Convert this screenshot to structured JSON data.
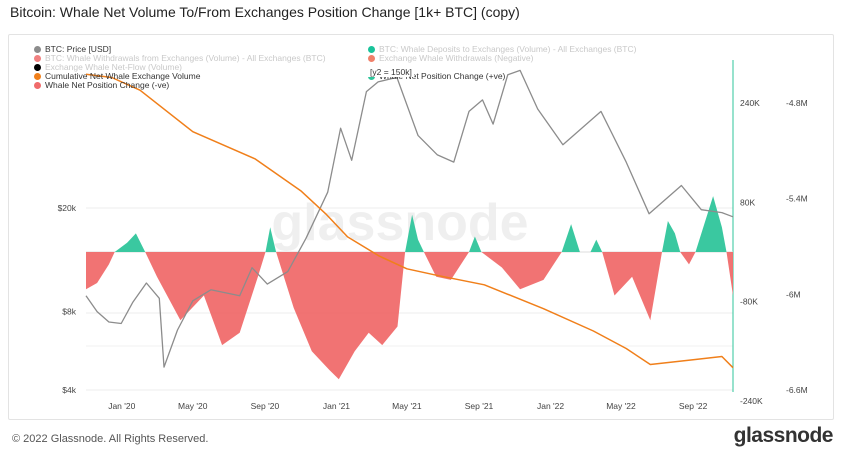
{
  "title": "Bitcoin: Whale Net Volume To/From Exchanges Position Change [1k+ BTC] (copy)",
  "footer": {
    "copyright": "© 2022 Glassnode. All Rights Reserved.",
    "brand": "glassnode"
  },
  "watermark": "glassnode",
  "annotation": "[y2 = 150k]",
  "legend": [
    {
      "label": "BTC: Price [USD]",
      "color": "#8c8c8c",
      "faded": false,
      "col": 0,
      "row": 0
    },
    {
      "label": "BTC: Whale Withdrawals from Exchanges (Volume) - All Exchanges (BTC)",
      "color": "#f08080",
      "faded": true,
      "col": 0,
      "row": 1
    },
    {
      "label": "Exchange Whale Net-Flow (Volume)",
      "color": "#000000",
      "faded": true,
      "col": 0,
      "row": 2
    },
    {
      "label": "Cumulative Net Whale Exchange Volume",
      "color": "#f07f1a",
      "faded": false,
      "col": 0,
      "row": 3
    },
    {
      "label": "Whale Net Position Change (-ve)",
      "color": "#f06b6b",
      "faded": false,
      "col": 0,
      "row": 4
    },
    {
      "label": "BTC: Whale Deposits to Exchanges (Volume) - All Exchanges (BTC)",
      "color": "#19c39a",
      "faded": true,
      "col": 1,
      "row": 0
    },
    {
      "label": "Exchange Whale Withdrawals (Negative)",
      "color": "#f0806a",
      "faded": true,
      "col": 1,
      "row": 1
    },
    {
      "label": "Whale Net Position Change (+ve)",
      "color": "#2fc59b",
      "faded": false,
      "col": 1,
      "row": 3
    }
  ],
  "chart_data": {
    "type": "line",
    "x_ticks": [
      "Jan '20",
      "May '20",
      "Sep '20",
      "Jan '21",
      "May '21",
      "Sep '21",
      "Jan '22",
      "May '22",
      "Sep '22"
    ],
    "y_left": {
      "scale": "log",
      "ticks": [
        "$4k",
        "$8k",
        "$20k"
      ],
      "tick_values": [
        4000,
        8000,
        20000
      ]
    },
    "y_right_inner": {
      "ticks": [
        "240K",
        "80K",
        "-80K",
        "-240K"
      ],
      "tick_values": [
        240000,
        80000,
        -80000,
        -240000
      ]
    },
    "y_right_outer": {
      "ticks": [
        "-4.8M",
        "-5.4M",
        "-6M",
        "-6.6M"
      ],
      "tick_values": [
        -4800000,
        -5400000,
        -6000000,
        -6600000
      ]
    },
    "x_range": [
      "2019-11-01",
      "2022-11-08"
    ],
    "series": [
      {
        "name": "BTC: Price [USD]",
        "axis": "left",
        "color": "#8c8c8c",
        "points": [
          [
            "2019-11-01",
            9200
          ],
          [
            "2019-11-20",
            8000
          ],
          [
            "2019-12-10",
            7300
          ],
          [
            "2019-12-31",
            7200
          ],
          [
            "2020-01-20",
            8700
          ],
          [
            "2020-02-12",
            10300
          ],
          [
            "2020-03-05",
            9000
          ],
          [
            "2020-03-13",
            4900
          ],
          [
            "2020-04-05",
            6800
          ],
          [
            "2020-05-01",
            8800
          ],
          [
            "2020-06-01",
            9700
          ],
          [
            "2020-07-20",
            9200
          ],
          [
            "2020-08-10",
            11800
          ],
          [
            "2020-09-05",
            10200
          ],
          [
            "2020-10-10",
            11400
          ],
          [
            "2020-11-10",
            15300
          ],
          [
            "2020-12-17",
            23000
          ],
          [
            "2021-01-08",
            40500
          ],
          [
            "2021-01-27",
            30500
          ],
          [
            "2021-02-21",
            56000
          ],
          [
            "2021-03-13",
            61000
          ],
          [
            "2021-04-14",
            63500
          ],
          [
            "2021-05-20",
            38000
          ],
          [
            "2021-06-22",
            32000
          ],
          [
            "2021-07-20",
            30000
          ],
          [
            "2021-08-15",
            47000
          ],
          [
            "2021-09-07",
            52000
          ],
          [
            "2021-09-25",
            42000
          ],
          [
            "2021-10-20",
            65000
          ],
          [
            "2021-11-10",
            67500
          ],
          [
            "2021-12-10",
            48000
          ],
          [
            "2022-01-22",
            35000
          ],
          [
            "2022-03-28",
            47000
          ],
          [
            "2022-05-10",
            30000
          ],
          [
            "2022-06-18",
            19000
          ],
          [
            "2022-08-12",
            24400
          ],
          [
            "2022-09-15",
            19700
          ],
          [
            "2022-10-20",
            19200
          ],
          [
            "2022-11-08",
            18500
          ]
        ]
      },
      {
        "name": "Cumulative Net Whale Exchange Volume",
        "axis": "right_outer",
        "color": "#f07f1a",
        "points": [
          [
            "2019-11-01",
            -4620000
          ],
          [
            "2019-12-15",
            -4640000
          ],
          [
            "2020-02-01",
            -4720000
          ],
          [
            "2020-05-01",
            -4980000
          ],
          [
            "2020-08-15",
            -5150000
          ],
          [
            "2020-11-01",
            -5350000
          ],
          [
            "2020-12-15",
            -5500000
          ],
          [
            "2021-01-20",
            -5640000
          ],
          [
            "2021-03-15",
            -5760000
          ],
          [
            "2021-05-01",
            -5840000
          ],
          [
            "2021-06-20",
            -5880000
          ],
          [
            "2021-09-10",
            -5940000
          ],
          [
            "2021-12-20",
            -6090000
          ],
          [
            "2022-03-15",
            -6230000
          ],
          [
            "2022-05-10",
            -6340000
          ],
          [
            "2022-06-20",
            -6440000
          ],
          [
            "2022-09-01",
            -6410000
          ],
          [
            "2022-10-20",
            -6390000
          ],
          [
            "2022-11-08",
            -6460000
          ]
        ]
      },
      {
        "name": "Whale Net Position Change (+ve)",
        "axis": "right_inner",
        "color": "#2fc59b",
        "points": [
          [
            "2019-12-20",
            0
          ],
          [
            "2020-01-10",
            15000
          ],
          [
            "2020-01-25",
            30000
          ],
          [
            "2020-02-10",
            0
          ],
          [
            "2020-09-02",
            0
          ],
          [
            "2020-09-10",
            40000
          ],
          [
            "2020-09-20",
            0
          ],
          [
            "2021-04-28",
            0
          ],
          [
            "2021-05-10",
            60000
          ],
          [
            "2021-05-20",
            20000
          ],
          [
            "2021-05-30",
            0
          ],
          [
            "2021-08-15",
            0
          ],
          [
            "2021-08-25",
            25000
          ],
          [
            "2021-09-05",
            0
          ],
          [
            "2022-01-20",
            0
          ],
          [
            "2022-02-05",
            45000
          ],
          [
            "2022-02-20",
            0
          ],
          [
            "2022-03-10",
            0
          ],
          [
            "2022-03-20",
            20000
          ],
          [
            "2022-03-30",
            0
          ],
          [
            "2022-07-10",
            0
          ],
          [
            "2022-07-20",
            50000
          ],
          [
            "2022-08-01",
            30000
          ],
          [
            "2022-08-10",
            0
          ],
          [
            "2022-09-05",
            0
          ],
          [
            "2022-10-05",
            90000
          ],
          [
            "2022-10-20",
            40000
          ],
          [
            "2022-10-28",
            0
          ]
        ]
      },
      {
        "name": "Whale Net Position Change (-ve)",
        "axis": "right_inner",
        "color": "#f06b6b",
        "points": [
          [
            "2019-11-01",
            -60000
          ],
          [
            "2019-11-20",
            -50000
          ],
          [
            "2019-12-10",
            -20000
          ],
          [
            "2019-12-20",
            0
          ],
          [
            "2020-02-10",
            0
          ],
          [
            "2020-03-01",
            -40000
          ],
          [
            "2020-04-10",
            -110000
          ],
          [
            "2020-05-20",
            -70000
          ],
          [
            "2020-06-20",
            -150000
          ],
          [
            "2020-07-20",
            -130000
          ],
          [
            "2020-08-20",
            -40000
          ],
          [
            "2020-09-02",
            0
          ],
          [
            "2020-09-20",
            0
          ],
          [
            "2020-10-20",
            -90000
          ],
          [
            "2020-11-20",
            -160000
          ],
          [
            "2020-12-20",
            -190000
          ],
          [
            "2021-01-05",
            -205000
          ],
          [
            "2021-02-01",
            -160000
          ],
          [
            "2021-02-25",
            -130000
          ],
          [
            "2021-03-20",
            -150000
          ],
          [
            "2021-04-15",
            -120000
          ],
          [
            "2021-04-28",
            0
          ],
          [
            "2021-05-30",
            0
          ],
          [
            "2021-06-20",
            -40000
          ],
          [
            "2021-07-15",
            -45000
          ],
          [
            "2021-08-15",
            0
          ],
          [
            "2021-09-05",
            0
          ],
          [
            "2021-10-10",
            -25000
          ],
          [
            "2021-11-10",
            -60000
          ],
          [
            "2021-12-20",
            -45000
          ],
          [
            "2022-01-20",
            0
          ],
          [
            "2022-02-20",
            0
          ],
          [
            "2022-03-10",
            0
          ],
          [
            "2022-03-30",
            0
          ],
          [
            "2022-04-20",
            -70000
          ],
          [
            "2022-05-20",
            -40000
          ],
          [
            "2022-06-20",
            -110000
          ],
          [
            "2022-07-10",
            0
          ],
          [
            "2022-08-10",
            0
          ],
          [
            "2022-08-25",
            -20000
          ],
          [
            "2022-09-05",
            0
          ],
          [
            "2022-10-28",
            0
          ],
          [
            "2022-11-08",
            -70000
          ]
        ]
      }
    ]
  }
}
